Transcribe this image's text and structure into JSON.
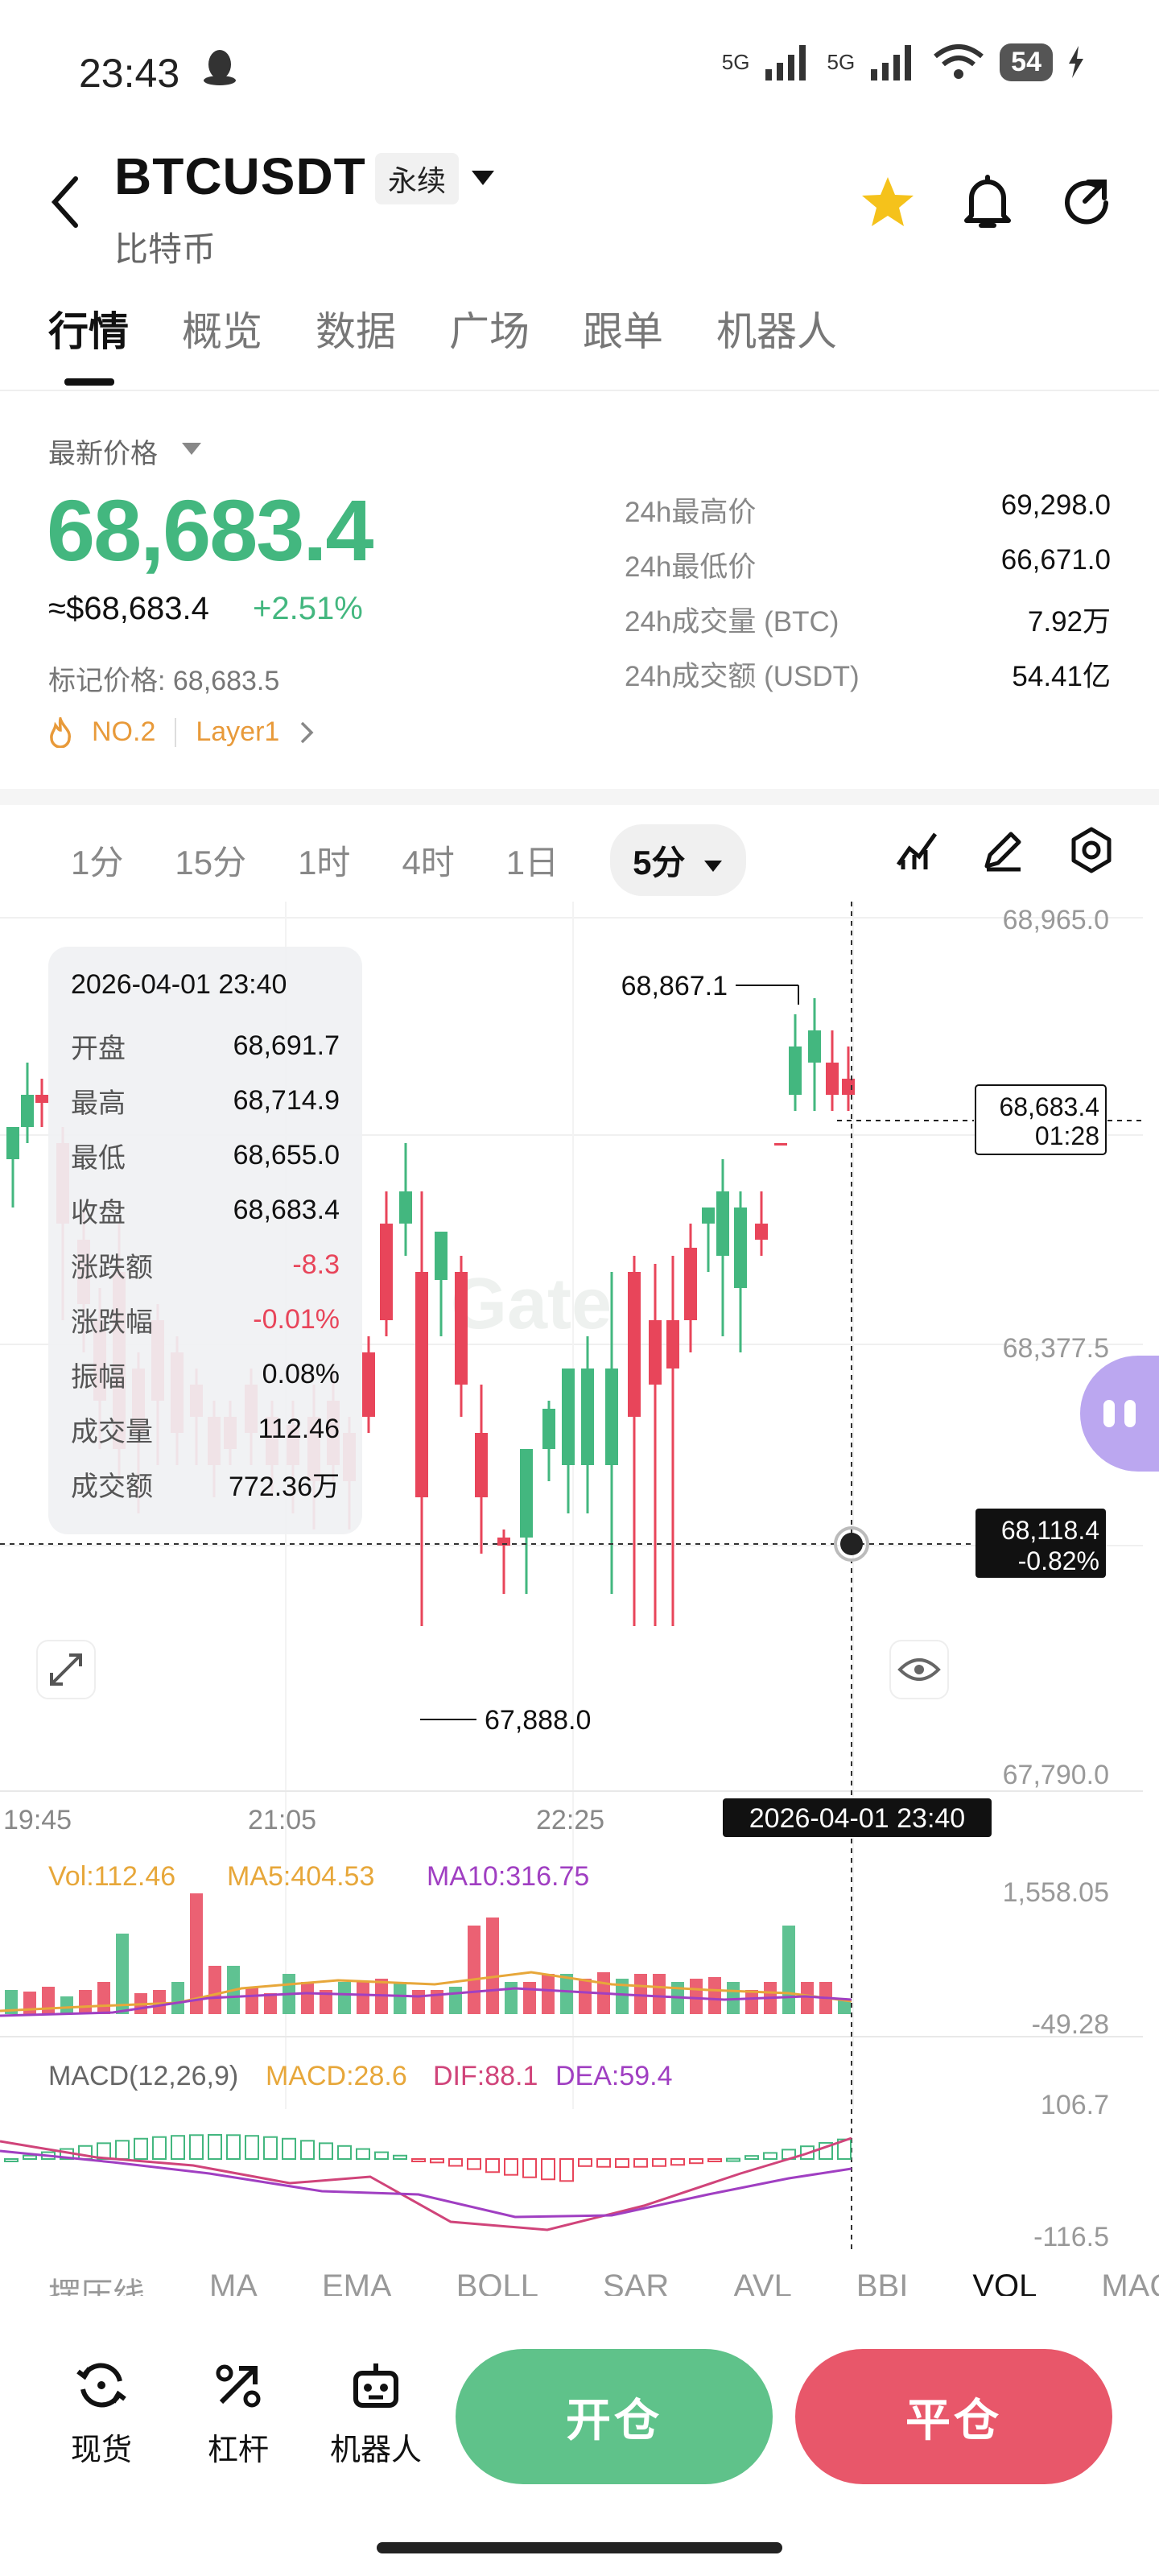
{
  "status_bar": {
    "time": "23:43",
    "battery": "54",
    "network_1": "5G",
    "network_2": "5G"
  },
  "header": {
    "symbol": "BTCUSDT",
    "contract_type": "永续",
    "name": "比特币"
  },
  "tabs": [
    {
      "label": "行情",
      "active": true
    },
    {
      "label": "概览",
      "active": false
    },
    {
      "label": "数据",
      "active": false
    },
    {
      "label": "广场",
      "active": false
    },
    {
      "label": "跟单",
      "active": false
    },
    {
      "label": "机器人",
      "active": false
    }
  ],
  "price": {
    "label": "最新价格",
    "last": "68,683.4",
    "usd": "≈$68,683.4",
    "change_pct": "+2.51%",
    "mark_price": "标记价格: 68,683.5",
    "rank": "NO.2",
    "tag": "Layer1"
  },
  "stats": [
    {
      "label": "24h最高价",
      "value": "69,298.0"
    },
    {
      "label": "24h最低价",
      "value": "66,671.0"
    },
    {
      "label": "24h成交量 (BTC)",
      "value": "7.92万"
    },
    {
      "label": "24h成交额 (USDT)",
      "value": "54.41亿"
    }
  ],
  "intervals": [
    "1分",
    "15分",
    "1时",
    "4时",
    "1日"
  ],
  "interval_selected": "5分",
  "tooltip": {
    "date": "2026-04-01 23:40",
    "rows": [
      {
        "k": "开盘",
        "v": "68,691.7",
        "red": false
      },
      {
        "k": "最高",
        "v": "68,714.9",
        "red": false
      },
      {
        "k": "最低",
        "v": "68,655.0",
        "red": false
      },
      {
        "k": "收盘",
        "v": "68,683.4",
        "red": false
      },
      {
        "k": "涨跌额",
        "v": "-8.3",
        "red": true
      },
      {
        "k": "涨跌幅",
        "v": "-0.01%",
        "red": true
      },
      {
        "k": "振幅",
        "v": "0.08%",
        "red": false
      },
      {
        "k": "成交量",
        "v": "112.46",
        "red": false
      },
      {
        "k": "成交额",
        "v": "772.36万",
        "red": false
      }
    ]
  },
  "chart_labels": {
    "y_top": "68,965.0",
    "y_mid": "68,377.5",
    "y_bottom": "67,790.0",
    "high_marker": "68,867.1",
    "low_marker": "67,888.0",
    "current_price": "68,683.4",
    "countdown": "01:28",
    "crosshair_price": "68,118.4",
    "crosshair_pct": "-0.82%",
    "x_ticks": [
      "19:45",
      "21:05",
      "22:25"
    ],
    "crosshair_time": "2026-04-01 23:40",
    "watermark": "Gate"
  },
  "volume": {
    "vol": "Vol:112.46",
    "ma5": "MA5:404.53",
    "ma10": "MA10:316.75",
    "y_top": "1,558.05",
    "y_bottom": "-49.28"
  },
  "macd": {
    "title": "MACD(12,26,9)",
    "macd": "MACD:28.6",
    "dif": "DIF:88.1",
    "dea": "DEA:59.4",
    "y_top": "106.7",
    "y_bottom": "-116.5"
  },
  "indicators": [
    "摆压线",
    "MA",
    "EMA",
    "BOLL",
    "SAR",
    "AVL",
    "BBI",
    "VOL",
    "MACD"
  ],
  "bottom_nav": [
    {
      "label": "现货",
      "icon": "spot-icon"
    },
    {
      "label": "杠杆",
      "icon": "leverage-icon"
    },
    {
      "label": "机器人",
      "icon": "robot-icon"
    }
  ],
  "buttons": {
    "open": "开仓",
    "close": "平仓"
  },
  "colors": {
    "up": "#43b77f",
    "down": "#e8455a",
    "accent_star": "#f5c21b"
  }
}
